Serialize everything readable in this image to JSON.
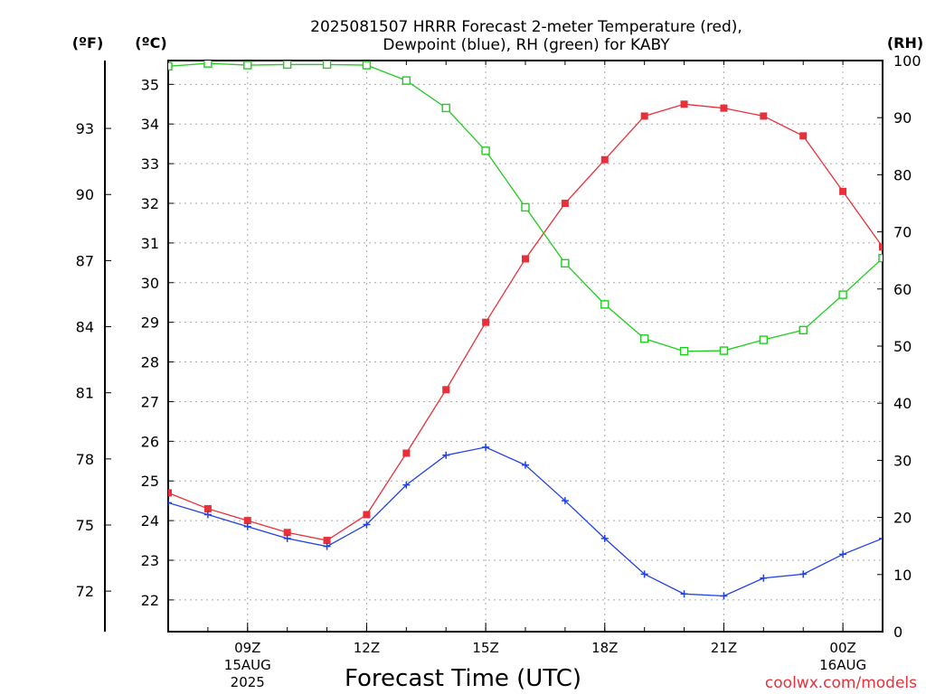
{
  "chart_data": {
    "type": "line",
    "title_lines": [
      "2025081507 HRRR Forecast 2-meter Temperature (red),",
      "Dewpoint (blue), RH (green) for KABY"
    ],
    "xlabel": "Forecast Time (UTC)",
    "credit": "coolwx.com/models",
    "left_unit_f": "(ºF)",
    "left_unit_c": "(ºC)",
    "right_unit": "(RH)",
    "x_hours_utc": [
      7,
      8,
      9,
      10,
      11,
      12,
      13,
      14,
      15,
      16,
      17,
      18,
      19,
      20,
      21,
      22,
      23,
      24,
      25
    ],
    "xlim": [
      7,
      25
    ],
    "x_ticks": [
      {
        "hour": 9,
        "lines": [
          "09Z",
          "15AUG",
          "2025"
        ]
      },
      {
        "hour": 12,
        "lines": [
          "12Z"
        ]
      },
      {
        "hour": 15,
        "lines": [
          "15Z"
        ]
      },
      {
        "hour": 18,
        "lines": [
          "18Z"
        ]
      },
      {
        "hour": 21,
        "lines": [
          "21Z"
        ]
      },
      {
        "hour": 24,
        "lines": [
          "00Z",
          "16AUG"
        ]
      }
    ],
    "y_celsius": {
      "lim": [
        21.2,
        35.6
      ],
      "ticks": [
        22,
        23,
        24,
        25,
        26,
        27,
        28,
        29,
        30,
        31,
        32,
        33,
        34,
        35
      ]
    },
    "y_fahrenheit": {
      "ticks": [
        72,
        75,
        78,
        81,
        84,
        87,
        90,
        93
      ]
    },
    "y_rh": {
      "lim": [
        0,
        100
      ],
      "ticks": [
        0,
        10,
        20,
        30,
        40,
        50,
        60,
        70,
        80,
        90,
        100
      ]
    },
    "series": [
      {
        "name": "Temperature",
        "color": "#e8303a",
        "axis": "celsius",
        "marker": "filled-square",
        "values": [
          24.7,
          24.3,
          24.0,
          23.7,
          23.5,
          24.15,
          25.7,
          27.3,
          29.0,
          30.6,
          32.0,
          33.1,
          34.2,
          34.5,
          34.4,
          34.2,
          33.7,
          32.3,
          30.9
        ]
      },
      {
        "name": "Dewpoint",
        "color": "#2040e8",
        "axis": "celsius",
        "marker": "plus",
        "values": [
          24.45,
          24.15,
          23.85,
          23.55,
          23.35,
          23.9,
          24.9,
          25.65,
          25.85,
          25.4,
          24.5,
          23.55,
          22.65,
          22.15,
          22.1,
          22.55,
          22.65,
          23.15,
          23.55
        ]
      },
      {
        "name": "RH",
        "color": "#20cc20",
        "axis": "rh",
        "marker": "open-square",
        "values": [
          99.0,
          99.5,
          99.2,
          99.3,
          99.3,
          99.2,
          96.5,
          91.7,
          84.2,
          74.3,
          64.5,
          57.3,
          51.3,
          49.1,
          49.2,
          51.1,
          52.8,
          59.0,
          65.4
        ]
      }
    ]
  }
}
